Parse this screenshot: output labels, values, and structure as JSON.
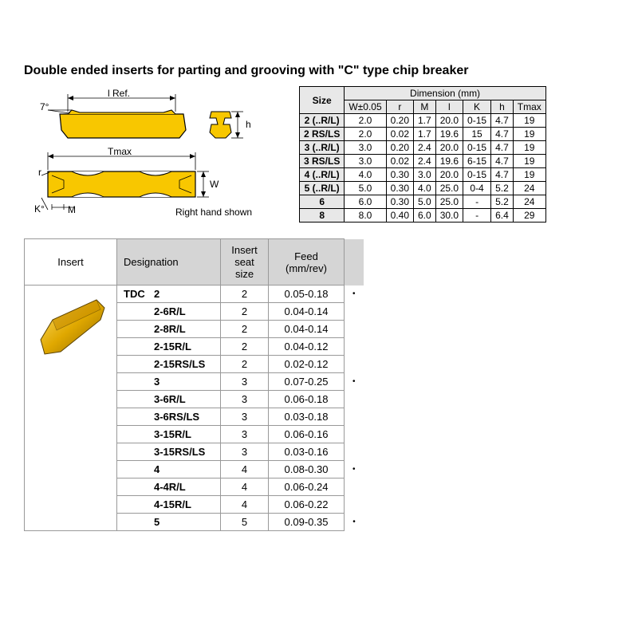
{
  "title": "Double ended inserts for parting and grooving with \"C\" type chip breaker",
  "diagram": {
    "top_angle": "7°",
    "lref": "l Ref.",
    "h": "h",
    "tmax": "Tmax",
    "w": "W",
    "m": "M",
    "k": "K°",
    "r": "r",
    "caption": "Right hand shown",
    "insert_color": "#f8c700",
    "outline_color": "#000000",
    "dim_line_color": "#000000"
  },
  "dim_table": {
    "size_header": "Size",
    "dim_header": "Dimension (mm)",
    "columns": [
      "W±0.05",
      "r",
      "M",
      "l",
      "K",
      "h",
      "Tmax"
    ],
    "rows": [
      {
        "size": "2 (..R/L)",
        "vals": [
          "2.0",
          "0.20",
          "1.7",
          "20.0",
          "0-15",
          "4.7",
          "19"
        ]
      },
      {
        "size": "2 RS/LS",
        "vals": [
          "2.0",
          "0.02",
          "1.7",
          "19.6",
          "15",
          "4.7",
          "19"
        ]
      },
      {
        "size": "3 (..R/L)",
        "vals": [
          "3.0",
          "0.20",
          "2.4",
          "20.0",
          "0-15",
          "4.7",
          "19"
        ]
      },
      {
        "size": "3 RS/LS",
        "vals": [
          "3.0",
          "0.02",
          "2.4",
          "19.6",
          "6-15",
          "4.7",
          "19"
        ]
      },
      {
        "size": "4 (..R/L)",
        "vals": [
          "4.0",
          "0.30",
          "3.0",
          "20.0",
          "0-15",
          "4.7",
          "19"
        ]
      },
      {
        "size": "5 (..R/L)",
        "vals": [
          "5.0",
          "0.30",
          "4.0",
          "25.0",
          "0-4",
          "5.2",
          "24"
        ]
      },
      {
        "size": "6",
        "vals": [
          "6.0",
          "0.30",
          "5.0",
          "25.0",
          "-",
          "5.2",
          "24"
        ]
      },
      {
        "size": "8",
        "vals": [
          "8.0",
          "0.40",
          "6.0",
          "30.0",
          "-",
          "6.4",
          "29"
        ]
      }
    ]
  },
  "insert_table": {
    "headers": {
      "insert": "Insert",
      "designation": "Designation",
      "seat": "Insert seat size",
      "feed": "Feed (mm/rev)"
    },
    "tdc_label": "TDC",
    "rows": [
      {
        "desig": "2",
        "seat": "2",
        "feed": "0.05-0.18",
        "dot": true
      },
      {
        "desig": "2-6R/L",
        "seat": "2",
        "feed": "0.04-0.14",
        "dot": false
      },
      {
        "desig": "2-8R/L",
        "seat": "2",
        "feed": "0.04-0.14",
        "dot": false
      },
      {
        "desig": "2-15R/L",
        "seat": "2",
        "feed": "0.04-0.12",
        "dot": false
      },
      {
        "desig": "2-15RS/LS",
        "seat": "2",
        "feed": "0.02-0.12",
        "dot": false
      },
      {
        "desig": "3",
        "seat": "3",
        "feed": "0.07-0.25",
        "dot": true
      },
      {
        "desig": "3-6R/L",
        "seat": "3",
        "feed": "0.06-0.18",
        "dot": false
      },
      {
        "desig": "3-6RS/LS",
        "seat": "3",
        "feed": "0.03-0.18",
        "dot": false
      },
      {
        "desig": "3-15R/L",
        "seat": "3",
        "feed": "0.06-0.16",
        "dot": false
      },
      {
        "desig": "3-15RS/LS",
        "seat": "3",
        "feed": "0.03-0.16",
        "dot": false
      },
      {
        "desig": "4",
        "seat": "4",
        "feed": "0.08-0.30",
        "dot": true
      },
      {
        "desig": "4-4R/L",
        "seat": "4",
        "feed": "0.06-0.24",
        "dot": false
      },
      {
        "desig": "4-15R/L",
        "seat": "4",
        "feed": "0.06-0.22",
        "dot": false
      },
      {
        "desig": "5",
        "seat": "5",
        "feed": "0.09-0.35",
        "dot": true
      }
    ],
    "insert_image_color": "#e0a800"
  }
}
